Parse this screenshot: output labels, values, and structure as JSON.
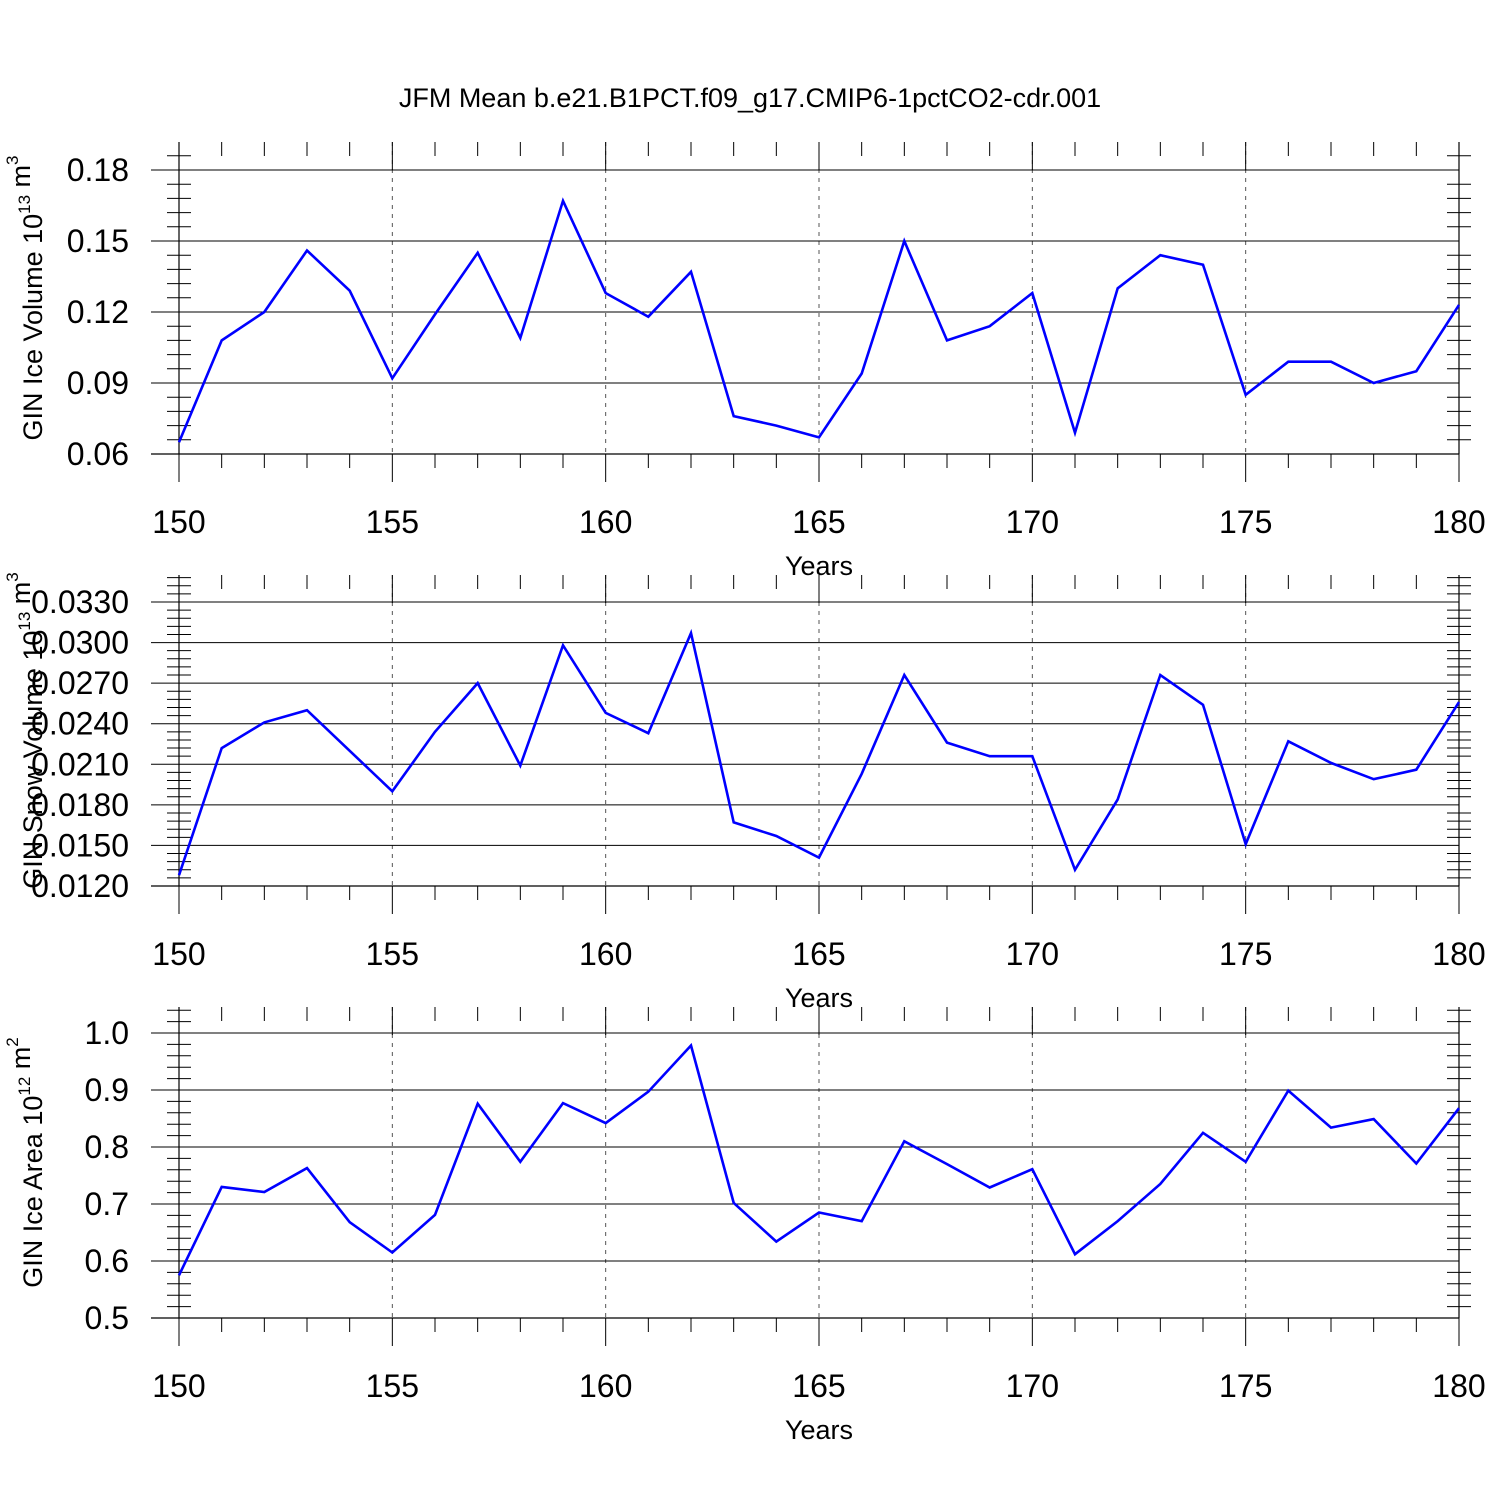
{
  "figure": {
    "title": "JFM Mean b.e21.B1PCT.f09_g17.CMIP6-1pctCO2-cdr.001"
  },
  "colors": {
    "series": "#0000ff",
    "axes": "#000000",
    "grid": "#555555"
  },
  "chart_data": [
    {
      "type": "line",
      "ylabel": "GIN Ice Volume 10",
      "ylabel_exp": "13",
      "ylabel_unit": " m",
      "ylabel_unit_exp": "3",
      "xlabel": "Years",
      "xlim": [
        150,
        180
      ],
      "ylim": [
        0.06,
        0.18
      ],
      "xticks": [
        "150",
        "155",
        "160",
        "165",
        "170",
        "175",
        "180"
      ],
      "yticks": [
        "0.06",
        "0.09",
        "0.12",
        "0.15",
        "0.18"
      ],
      "x": [
        150,
        151,
        152,
        153,
        154,
        155,
        156,
        157,
        158,
        159,
        160,
        161,
        162,
        163,
        164,
        165,
        166,
        167,
        168,
        169,
        170,
        171,
        172,
        173,
        174,
        175,
        176,
        177,
        178,
        179,
        180
      ],
      "values": [
        0.065,
        0.108,
        0.12,
        0.146,
        0.129,
        0.092,
        0.119,
        0.145,
        0.109,
        0.167,
        0.128,
        0.118,
        0.137,
        0.076,
        0.072,
        0.067,
        0.094,
        0.15,
        0.108,
        0.114,
        0.128,
        0.069,
        0.13,
        0.144,
        0.14,
        0.085,
        0.099,
        0.099,
        0.09,
        0.095,
        0.123
      ]
    },
    {
      "type": "line",
      "ylabel": "GIN Snow Volume 10",
      "ylabel_exp": "13",
      "ylabel_unit": " m",
      "ylabel_unit_exp": "3",
      "xlabel": "Years",
      "xlim": [
        150,
        180
      ],
      "ylim": [
        0.012,
        0.033
      ],
      "xticks": [
        "150",
        "155",
        "160",
        "165",
        "170",
        "175",
        "180"
      ],
      "yticks": [
        "0.0120",
        "0.0150",
        "0.0180",
        "0.0210",
        "0.0240",
        "0.0270",
        "0.0300",
        "0.0330"
      ],
      "x": [
        150,
        151,
        152,
        153,
        154,
        155,
        156,
        157,
        158,
        159,
        160,
        161,
        162,
        163,
        164,
        165,
        166,
        167,
        168,
        169,
        170,
        171,
        172,
        173,
        174,
        175,
        176,
        177,
        178,
        179,
        180
      ],
      "values": [
        0.0128,
        0.0222,
        0.0241,
        0.025,
        0.022,
        0.019,
        0.0234,
        0.027,
        0.0209,
        0.0298,
        0.0248,
        0.0233,
        0.0307,
        0.0167,
        0.0157,
        0.0141,
        0.0203,
        0.0276,
        0.0226,
        0.0216,
        0.0216,
        0.0132,
        0.0184,
        0.0276,
        0.0254,
        0.0151,
        0.0227,
        0.0211,
        0.0199,
        0.0206,
        0.0256
      ]
    },
    {
      "type": "line",
      "ylabel": "GIN Ice Area 10",
      "ylabel_exp": "12",
      "ylabel_unit": " m",
      "ylabel_unit_exp": "2",
      "xlabel": "Years",
      "xlim": [
        150,
        180
      ],
      "ylim": [
        0.5,
        1.0
      ],
      "xticks": [
        "150",
        "155",
        "160",
        "165",
        "170",
        "175",
        "180"
      ],
      "yticks": [
        "0.5",
        "0.6",
        "0.7",
        "0.8",
        "0.9",
        "1.0"
      ],
      "x": [
        150,
        151,
        152,
        153,
        154,
        155,
        156,
        157,
        158,
        159,
        160,
        161,
        162,
        163,
        164,
        165,
        166,
        167,
        168,
        169,
        170,
        171,
        172,
        173,
        174,
        175,
        176,
        177,
        178,
        179,
        180
      ],
      "values": [
        0.575,
        0.73,
        0.721,
        0.763,
        0.668,
        0.615,
        0.681,
        0.876,
        0.774,
        0.877,
        0.842,
        0.897,
        0.978,
        0.702,
        0.634,
        0.685,
        0.67,
        0.81,
        0.77,
        0.729,
        0.761,
        0.612,
        0.67,
        0.735,
        0.825,
        0.774,
        0.899,
        0.834,
        0.849,
        0.771,
        0.868
      ]
    }
  ]
}
